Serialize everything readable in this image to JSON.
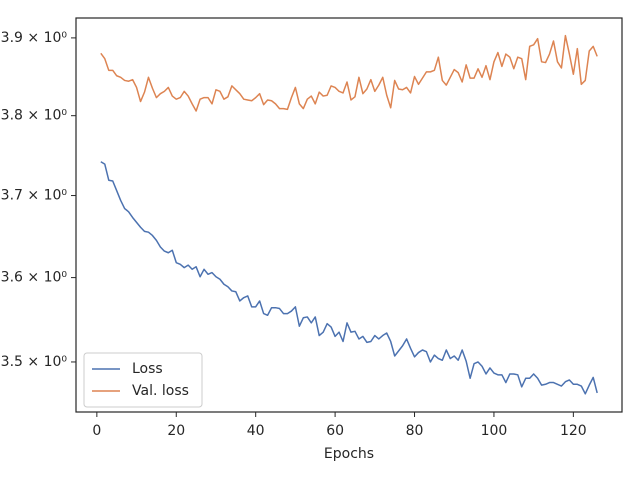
{
  "chart_data": {
    "type": "line",
    "xlabel": "Epochs",
    "yscale": "log",
    "legend": "lower left",
    "x": [
      1,
      2,
      3,
      4,
      5,
      6,
      7,
      8,
      9,
      10,
      11,
      12,
      13,
      14,
      15,
      16,
      17,
      18,
      19,
      20,
      21,
      22,
      23,
      24,
      25,
      26,
      27,
      28,
      29,
      30,
      31,
      32,
      33,
      34,
      35,
      36,
      37,
      38,
      39,
      40,
      41,
      42,
      43,
      44,
      45,
      46,
      47,
      48,
      49,
      50,
      51,
      52,
      53,
      54,
      55,
      56,
      57,
      58,
      59,
      60,
      61,
      62,
      63,
      64,
      65,
      66,
      67,
      68,
      69,
      70,
      71,
      72,
      73,
      74,
      75,
      76,
      77,
      78,
      79,
      80,
      81,
      82,
      83,
      84,
      85,
      86,
      87,
      88,
      89,
      90,
      91,
      92,
      93,
      94,
      95,
      96,
      97,
      98,
      99,
      100,
      101,
      102,
      103,
      104,
      105,
      106,
      107,
      108,
      109,
      110,
      111,
      112,
      113,
      114,
      115,
      116,
      117,
      118,
      119,
      120,
      121,
      122,
      123,
      124,
      125,
      126
    ],
    "series": [
      {
        "name": "Loss",
        "color": "#4c72b0",
        "values": [
          3.742,
          3.739,
          3.719,
          3.718,
          3.706,
          3.694,
          3.684,
          3.68,
          3.673,
          3.667,
          3.661,
          3.656,
          3.655,
          3.651,
          3.645,
          3.637,
          3.632,
          3.63,
          3.633,
          3.618,
          3.616,
          3.612,
          3.615,
          3.61,
          3.613,
          3.601,
          3.61,
          3.604,
          3.606,
          3.601,
          3.598,
          3.592,
          3.589,
          3.584,
          3.583,
          3.572,
          3.576,
          3.578,
          3.565,
          3.565,
          3.572,
          3.557,
          3.555,
          3.564,
          3.564,
          3.563,
          3.557,
          3.557,
          3.56,
          3.565,
          3.542,
          3.552,
          3.553,
          3.546,
          3.553,
          3.531,
          3.535,
          3.545,
          3.541,
          3.53,
          3.535,
          3.524,
          3.546,
          3.535,
          3.536,
          3.527,
          3.53,
          3.523,
          3.524,
          3.531,
          3.527,
          3.531,
          3.534,
          3.524,
          3.507,
          3.513,
          3.519,
          3.527,
          3.516,
          3.506,
          3.511,
          3.514,
          3.512,
          3.5,
          3.508,
          3.504,
          3.502,
          3.514,
          3.504,
          3.507,
          3.502,
          3.514,
          3.501,
          3.481,
          3.498,
          3.5,
          3.495,
          3.486,
          3.493,
          3.487,
          3.485,
          3.485,
          3.476,
          3.486,
          3.486,
          3.485,
          3.471,
          3.481,
          3.481,
          3.486,
          3.481,
          3.473,
          3.474,
          3.476,
          3.476,
          3.474,
          3.472,
          3.477,
          3.479,
          3.474,
          3.474,
          3.472,
          3.463,
          3.473,
          3.482,
          3.464
        ]
      },
      {
        "name": "Val. loss",
        "color": "#dd8452",
        "values": [
          3.88,
          3.873,
          3.858,
          3.858,
          3.851,
          3.849,
          3.845,
          3.844,
          3.846,
          3.836,
          3.818,
          3.83,
          3.849,
          3.835,
          3.823,
          3.828,
          3.831,
          3.836,
          3.825,
          3.821,
          3.823,
          3.831,
          3.825,
          3.815,
          3.806,
          3.821,
          3.823,
          3.823,
          3.815,
          3.833,
          3.831,
          3.821,
          3.824,
          3.838,
          3.833,
          3.828,
          3.821,
          3.82,
          3.819,
          3.823,
          3.828,
          3.814,
          3.82,
          3.819,
          3.815,
          3.809,
          3.809,
          3.808,
          3.823,
          3.836,
          3.815,
          3.809,
          3.821,
          3.825,
          3.815,
          3.83,
          3.825,
          3.826,
          3.838,
          3.836,
          3.831,
          3.829,
          3.843,
          3.82,
          3.824,
          3.849,
          3.828,
          3.834,
          3.846,
          3.831,
          3.839,
          3.849,
          3.826,
          3.81,
          3.845,
          3.834,
          3.833,
          3.836,
          3.829,
          3.85,
          3.84,
          3.848,
          3.856,
          3.856,
          3.858,
          3.875,
          3.845,
          3.839,
          3.849,
          3.859,
          3.855,
          3.843,
          3.865,
          3.848,
          3.848,
          3.86,
          3.849,
          3.864,
          3.846,
          3.869,
          3.881,
          3.863,
          3.879,
          3.875,
          3.86,
          3.875,
          3.873,
          3.846,
          3.889,
          3.891,
          3.899,
          3.869,
          3.868,
          3.879,
          3.896,
          3.869,
          3.861,
          3.903,
          3.879,
          3.853,
          3.886,
          3.84,
          3.845,
          3.883,
          3.889,
          3.876
        ]
      }
    ],
    "xlim": [
      -5.25,
      132.25
    ],
    "xticks": [
      0,
      20,
      40,
      60,
      80,
      100,
      120
    ],
    "ylim": [
      3.442,
      3.926
    ],
    "yticks": [
      {
        "value": 3.5,
        "label": "3.5 × 10⁰"
      },
      {
        "value": 3.6,
        "label": "3.6 × 10⁰"
      },
      {
        "value": 3.7,
        "label": "3.7 × 10⁰"
      },
      {
        "value": 3.8,
        "label": "3.8 × 10⁰"
      },
      {
        "value": 3.9,
        "label": "3.9 × 10⁰"
      }
    ]
  }
}
